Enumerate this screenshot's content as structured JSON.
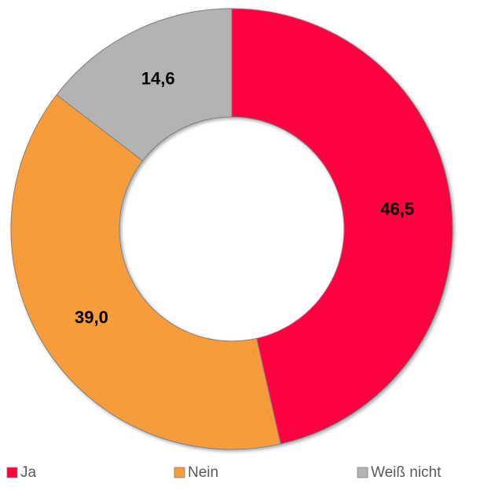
{
  "chart_data": {
    "type": "donut",
    "categories": [
      "Ja",
      "Nein",
      "Weiß nicht"
    ],
    "values": [
      46.5,
      39.0,
      14.6
    ],
    "value_labels": [
      "46,5",
      "39,0",
      "14,6"
    ],
    "colors": [
      "#ff0040",
      "#f79c3a",
      "#b3b3b3"
    ],
    "legend": "bottom"
  }
}
